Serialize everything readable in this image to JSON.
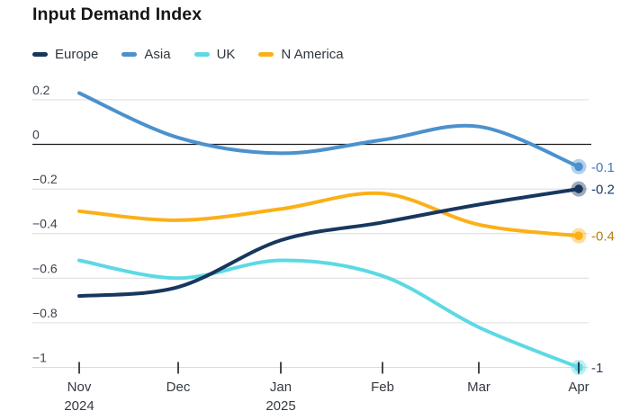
{
  "title": "Input Demand Index",
  "colors": {
    "background": "#ffffff",
    "grid": "#dcdcdc",
    "zero_line": "#1c1c1c",
    "axis_text": "#3c4350",
    "month_text": "#343a41",
    "title_text": "#161616",
    "legend_text": "#2f363e"
  },
  "chart_data": {
    "type": "line",
    "title": "Input Demand Index",
    "x_categories": [
      "Nov",
      "Dec",
      "Jan",
      "Feb",
      "Mar",
      "Apr"
    ],
    "x_sub_labels": [
      "2024",
      "",
      "2025",
      "",
      "",
      ""
    ],
    "y_ticks": [
      {
        "value": 0.2,
        "label": "0.2"
      },
      {
        "value": 0,
        "label": "0"
      },
      {
        "value": -0.2,
        "label": "−0.2"
      },
      {
        "value": -0.4,
        "label": "−0.4"
      },
      {
        "value": -0.6,
        "label": "−0.6"
      },
      {
        "value": -0.8,
        "label": "−0.8"
      },
      {
        "value": -1,
        "label": "−1"
      }
    ],
    "ylim": [
      -1.05,
      0.27
    ],
    "grid": "horizontal-only",
    "legend_position": "top-left",
    "series": [
      {
        "name": "Europe",
        "color": "#17375e",
        "values": [
          -0.68,
          -0.64,
          -0.43,
          -0.35,
          -0.27,
          -0.2
        ],
        "end_label": "-0.2",
        "end_label_color": "#17375e"
      },
      {
        "name": "Asia",
        "color": "#4b91cd",
        "values": [
          0.23,
          0.03,
          -0.04,
          0.02,
          0.08,
          -0.1
        ],
        "end_label": "-0.1",
        "end_label_color": "#3c7dc0"
      },
      {
        "name": "UK",
        "color": "#5cd9e4",
        "values": [
          -0.52,
          -0.6,
          -0.52,
          -0.59,
          -0.82,
          -1.0
        ],
        "end_label": "-1",
        "end_label_color": "#2c3e50"
      },
      {
        "name": "N America",
        "color": "#fbb018",
        "values": [
          -0.3,
          -0.34,
          -0.29,
          -0.22,
          -0.36,
          -0.41
        ],
        "end_label": "-0.4",
        "end_label_color": "#b67e13"
      }
    ]
  }
}
